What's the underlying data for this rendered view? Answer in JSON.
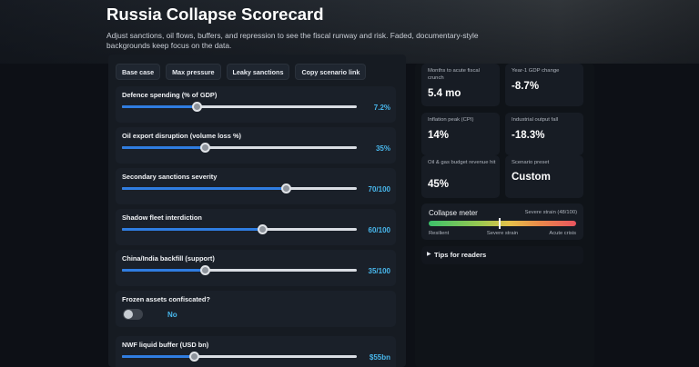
{
  "header": {
    "title": "Russia Collapse Scorecard",
    "subtitle": "Adjust sanctions, oil flows, buffers, and repression to see the fiscal runway and risk. Faded, documentary-style backgrounds keep focus on the data."
  },
  "presets": [
    {
      "label": "Base case"
    },
    {
      "label": "Max pressure"
    },
    {
      "label": "Leaky sanctions"
    },
    {
      "label": "Copy scenario link"
    }
  ],
  "controls": {
    "defence": {
      "label": "Defence spending (% of GDP)",
      "value_text": "7.2%",
      "fraction": 0.32
    },
    "oil": {
      "label": "Oil export disruption (volume loss %)",
      "value_text": "35%",
      "fraction": 0.355
    },
    "sanctions": {
      "label": "Secondary sanctions severity",
      "value_text": "70/100",
      "fraction": 0.7
    },
    "shadow": {
      "label": "Shadow fleet interdiction",
      "value_text": "60/100",
      "fraction": 0.6
    },
    "backfill": {
      "label": "China/India backfill (support)",
      "value_text": "35/100",
      "fraction": 0.355
    },
    "frozen": {
      "label": "Frozen assets confiscated?",
      "value_text": "No",
      "on": false
    },
    "nwf": {
      "label": "NWF liquid buffer (USD bn)",
      "value_text": "$55bn",
      "fraction": 0.31
    }
  },
  "metrics": [
    {
      "label": "Months to acute fiscal crunch",
      "value": "5.4 mo"
    },
    {
      "label": "Year-1 GDP change",
      "value": "-8.7%"
    },
    {
      "label": "Inflation peak (CPI)",
      "value": "14%"
    },
    {
      "label": "Industrial output fall",
      "value": "-18.3%"
    },
    {
      "label": "Oil & gas budget revenue hit",
      "value": "45%"
    },
    {
      "label": "Scenario preset",
      "value": "Custom"
    }
  ],
  "meter": {
    "title": "Collapse meter",
    "status": "Severe strain (48/100)",
    "score": 48,
    "ticks": [
      "Resilient",
      "Severe strain",
      "Acute crisis"
    ]
  },
  "tips": {
    "icon": "triangle-right-icon",
    "label": "Tips for readers"
  },
  "colors": {
    "accent": "#2f7de1",
    "value_text": "#48b7ec",
    "panel": "#161b22"
  }
}
